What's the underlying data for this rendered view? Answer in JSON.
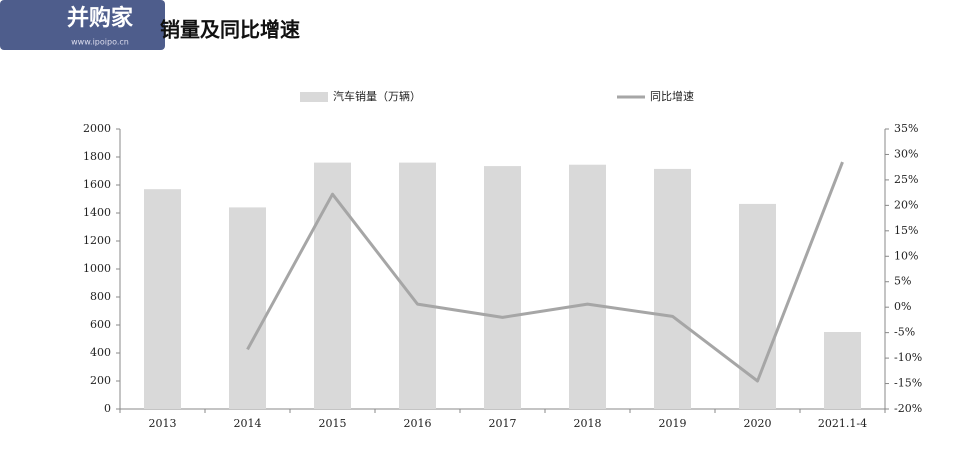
{
  "watermark": {
    "name": "并购家",
    "url": "www.ipoipo.cn"
  },
  "chart_data": {
    "type": "bar",
    "title": "销量及同比增速",
    "categories": [
      "2013",
      "2014",
      "2015",
      "2016",
      "2017",
      "2018",
      "2019",
      "2020",
      "2021.1-4"
    ],
    "series": [
      {
        "name": "汽车销量（万辆）",
        "type": "bar",
        "color": "#d9d9d9",
        "values": [
          1570,
          1440,
          1760,
          1760,
          1735,
          1745,
          1715,
          1465,
          550
        ]
      },
      {
        "name": "同比增速",
        "type": "line",
        "axis": "y2",
        "color": "#a6a6a6",
        "values": [
          null,
          -8.3,
          22.2,
          0.6,
          -2.0,
          0.6,
          -1.8,
          -14.5,
          28.5
        ]
      }
    ],
    "ylim": [
      0,
      2000
    ],
    "yticks": [
      0,
      200,
      400,
      600,
      800,
      1000,
      1200,
      1400,
      1600,
      1800,
      2000
    ],
    "y2lim": [
      -20,
      35
    ],
    "y2ticks": [
      {
        "value": -20,
        "label": "-20%"
      },
      {
        "value": -15,
        "label": "-15%"
      },
      {
        "value": -10,
        "label": "-10%"
      },
      {
        "value": -5,
        "label": "-5%"
      },
      {
        "value": 0,
        "label": "0%"
      },
      {
        "value": 5,
        "label": "5%"
      },
      {
        "value": 10,
        "label": "10%"
      },
      {
        "value": 15,
        "label": "15%"
      },
      {
        "value": 20,
        "label": "20%"
      },
      {
        "value": 25,
        "label": "25%"
      },
      {
        "value": 30,
        "label": "30%"
      },
      {
        "value": 35,
        "label": "35%"
      }
    ],
    "legend": "top",
    "grid": false
  }
}
